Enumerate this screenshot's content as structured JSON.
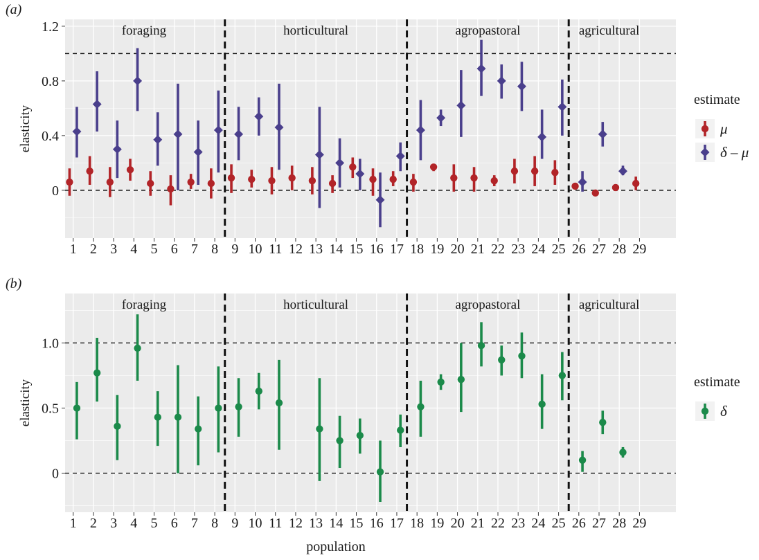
{
  "chart_data": [
    {
      "type": "scatter",
      "panel_label": "(a)",
      "ylabel": "elasticity",
      "x": [
        1,
        2,
        3,
        4,
        5,
        6,
        7,
        8,
        9,
        10,
        11,
        12,
        13,
        14,
        15,
        16,
        17,
        18,
        19,
        20,
        21,
        22,
        23,
        24,
        25,
        26,
        27,
        28,
        29
      ],
      "x_tick_labels": [
        "1",
        "2",
        "3",
        "4",
        "5",
        "6",
        "7",
        "8",
        "9",
        "10",
        "11",
        "12",
        "13",
        "14",
        "15",
        "16",
        "17",
        "18",
        "19",
        "20",
        "21",
        "22",
        "23",
        "24",
        "25",
        "26",
        "27",
        "28",
        "29"
      ],
      "ylim": [
        -0.35,
        1.25
      ],
      "y_ticks": [
        0,
        0.4,
        0.8,
        1.2
      ],
      "y_tick_labels": [
        "0",
        "0.4",
        "0.8",
        "1.2"
      ],
      "hlines": [
        0,
        1.0
      ],
      "group_dividers": [
        8.5,
        17.5,
        25.5
      ],
      "groups": [
        {
          "label": "foraging",
          "from": 1,
          "to": 8
        },
        {
          "label": "horticultural",
          "from": 9,
          "to": 17
        },
        {
          "label": "agropastoral",
          "from": 18,
          "to": 25
        },
        {
          "label": "agricultural",
          "from": 26,
          "to": 29
        }
      ],
      "legend": {
        "title": "estimate",
        "position": "right"
      },
      "grid": true,
      "series": [
        {
          "name": "μ",
          "color": "#b22428",
          "marker": "circle",
          "offset": -0.18,
          "values": [
            0.06,
            0.14,
            0.06,
            0.15,
            0.05,
            0.01,
            0.06,
            0.05,
            0.09,
            0.08,
            0.07,
            0.09,
            0.07,
            0.05,
            0.17,
            0.08,
            0.08,
            0.06,
            0.17,
            0.09,
            0.09,
            0.07,
            0.14,
            0.14,
            0.13,
            0.03,
            -0.02,
            0.02,
            0.05
          ],
          "lower": [
            -0.04,
            0.04,
            -0.05,
            0.07,
            -0.04,
            -0.11,
            0.01,
            -0.06,
            -0.02,
            0.02,
            -0.03,
            0.0,
            -0.03,
            -0.02,
            0.09,
            -0.04,
            0.03,
            -0.01,
            0.14,
            -0.01,
            -0.01,
            0.03,
            0.05,
            0.03,
            0.04,
            0.01,
            -0.03,
            0.01,
            0.0
          ],
          "upper": [
            0.16,
            0.25,
            0.17,
            0.23,
            0.14,
            0.11,
            0.12,
            0.16,
            0.19,
            0.15,
            0.17,
            0.18,
            0.17,
            0.11,
            0.24,
            0.16,
            0.14,
            0.12,
            0.19,
            0.19,
            0.17,
            0.11,
            0.23,
            0.25,
            0.22,
            0.05,
            -0.01,
            0.03,
            0.1
          ]
        },
        {
          "name": "δ – μ",
          "color": "#4a3f8c",
          "marker": "diamond",
          "offset": 0.18,
          "values": [
            0.43,
            0.63,
            0.3,
            0.8,
            0.37,
            0.41,
            0.28,
            0.44,
            0.41,
            0.54,
            0.46,
            null,
            0.26,
            0.2,
            0.12,
            -0.07,
            0.25,
            0.44,
            0.53,
            0.62,
            0.89,
            0.8,
            0.76,
            0.39,
            0.61,
            0.06,
            0.41,
            0.14,
            null
          ],
          "lower": [
            0.24,
            0.43,
            0.09,
            0.58,
            0.18,
            0.0,
            0.04,
            0.13,
            0.22,
            0.4,
            0.15,
            null,
            -0.13,
            0.02,
            0.0,
            -0.27,
            0.14,
            0.22,
            0.47,
            0.39,
            0.69,
            0.67,
            0.58,
            0.23,
            0.4,
            -0.01,
            0.32,
            0.11,
            null
          ],
          "upper": [
            0.61,
            0.87,
            0.51,
            1.04,
            0.57,
            0.78,
            0.51,
            0.73,
            0.61,
            0.68,
            0.78,
            null,
            0.61,
            0.38,
            0.23,
            0.13,
            0.35,
            0.66,
            0.59,
            0.88,
            1.1,
            0.92,
            0.94,
            0.59,
            0.81,
            0.14,
            0.5,
            0.18,
            null
          ]
        }
      ]
    },
    {
      "type": "scatter",
      "panel_label": "(b)",
      "xlabel": "population",
      "ylabel": "elasticity",
      "x": [
        1,
        2,
        3,
        4,
        5,
        6,
        7,
        8,
        9,
        10,
        11,
        12,
        13,
        14,
        15,
        16,
        17,
        18,
        19,
        20,
        21,
        22,
        23,
        24,
        25,
        26,
        27,
        28,
        29
      ],
      "x_tick_labels": [
        "1",
        "2",
        "3",
        "4",
        "5",
        "6",
        "7",
        "8",
        "9",
        "10",
        "11",
        "12",
        "13",
        "14",
        "15",
        "16",
        "17",
        "18",
        "19",
        "20",
        "21",
        "22",
        "23",
        "24",
        "25",
        "26",
        "27",
        "28",
        "29"
      ],
      "ylim": [
        -0.3,
        1.38
      ],
      "y_ticks": [
        0,
        0.5,
        1.0
      ],
      "y_tick_labels": [
        "0",
        "0.5",
        "1.0"
      ],
      "hlines": [
        0,
        1.0
      ],
      "group_dividers": [
        8.5,
        17.5,
        25.5
      ],
      "groups": [
        {
          "label": "foraging",
          "from": 1,
          "to": 8
        },
        {
          "label": "horticultural",
          "from": 9,
          "to": 17
        },
        {
          "label": "agropastoral",
          "from": 18,
          "to": 25
        },
        {
          "label": "agricultural",
          "from": 26,
          "to": 29
        }
      ],
      "legend": {
        "title": "estimate",
        "position": "right"
      },
      "grid": true,
      "series": [
        {
          "name": "δ",
          "color": "#1b8a4a",
          "marker": "circle",
          "offset": 0.18,
          "values": [
            0.5,
            0.77,
            0.36,
            0.96,
            0.43,
            0.43,
            0.34,
            0.5,
            0.51,
            0.63,
            0.54,
            null,
            0.34,
            0.25,
            0.29,
            0.01,
            0.33,
            0.51,
            0.7,
            0.72,
            0.98,
            0.87,
            0.9,
            0.53,
            0.75,
            0.1,
            0.39,
            0.16,
            null
          ],
          "lower": [
            0.26,
            0.55,
            0.1,
            0.71,
            0.21,
            0.0,
            0.06,
            0.16,
            0.28,
            0.49,
            0.18,
            null,
            -0.06,
            0.04,
            0.15,
            -0.22,
            0.2,
            0.28,
            0.64,
            0.47,
            0.82,
            0.75,
            0.73,
            0.34,
            0.56,
            0.01,
            0.3,
            0.12,
            null
          ],
          "upper": [
            0.7,
            1.04,
            0.6,
            1.22,
            0.63,
            0.83,
            0.59,
            0.82,
            0.73,
            0.77,
            0.87,
            null,
            0.73,
            0.44,
            0.42,
            0.25,
            0.45,
            0.71,
            0.76,
            1.0,
            1.16,
            0.98,
            1.08,
            0.76,
            0.93,
            0.17,
            0.48,
            0.2,
            null
          ]
        }
      ]
    }
  ]
}
